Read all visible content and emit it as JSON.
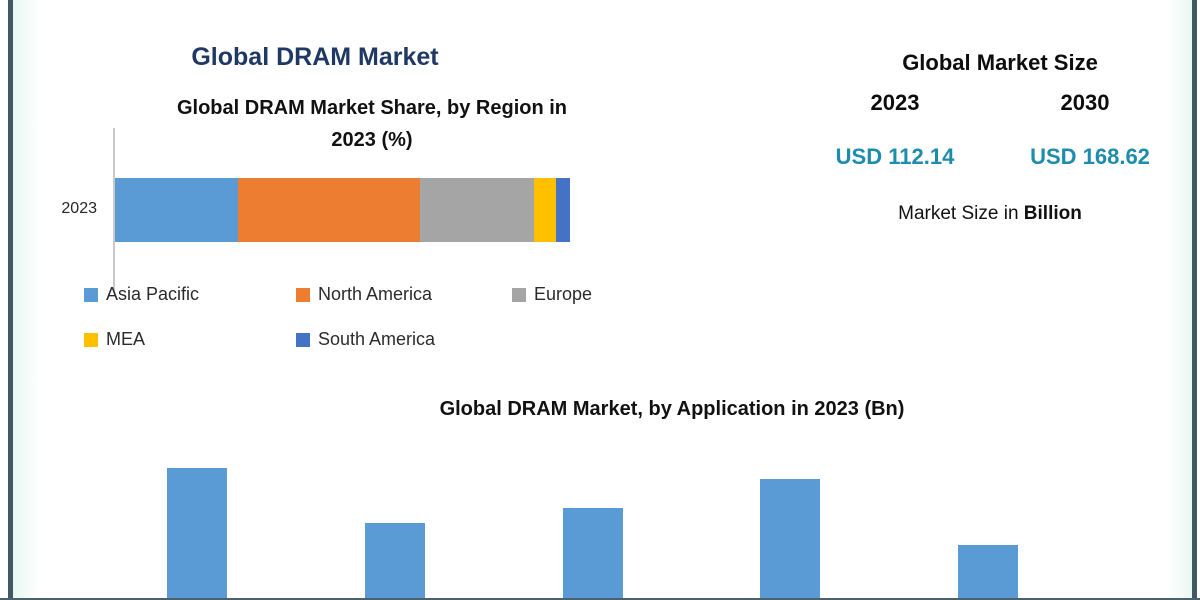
{
  "frame": {
    "border_color": "#3f5a64"
  },
  "header": {
    "title": "Global DRAM Market",
    "title_color": "#1f3864"
  },
  "market_size": {
    "title": "Global Market Size",
    "year_2023": "2023",
    "year_2030": "2030",
    "value_2023": "USD 112.14",
    "value_2030": "USD 168.62",
    "value_color": "#1d8cad",
    "caption_text": "Market Size in ",
    "caption_bold": "Billion"
  },
  "chart_data": [
    {
      "type": "bar",
      "orientation": "horizontal-stacked",
      "title": "Global DRAM Market Share, by Region in 2023 (%)",
      "title_line1": "Global DRAM Market Share, by Region in",
      "title_line2": "2023 (%)",
      "categories": [
        "2023"
      ],
      "series": [
        {
          "name": "Asia Pacific",
          "color": "#5b9bd5",
          "values": [
            27
          ]
        },
        {
          "name": "North America",
          "color": "#ed7d31",
          "values": [
            40
          ]
        },
        {
          "name": "Europe",
          "color": "#a5a5a5",
          "values": [
            25
          ]
        },
        {
          "name": "MEA",
          "color": "#ffc000",
          "values": [
            5
          ]
        },
        {
          "name": "South America",
          "color": "#4472c4",
          "values": [
            3
          ]
        }
      ],
      "xlim": [
        0,
        100
      ],
      "legend_position": "bottom",
      "grid": false
    },
    {
      "type": "bar",
      "title": "Global DRAM Market, by Application in 2023 (Bn)",
      "categories": [
        "",
        "",
        "",
        "",
        ""
      ],
      "values": [
        132,
        77,
        92,
        121,
        55
      ],
      "bar_color": "#5b9bd5",
      "note": "bars cropped at bottom edge of screenshot; axis and category labels not visible"
    }
  ]
}
